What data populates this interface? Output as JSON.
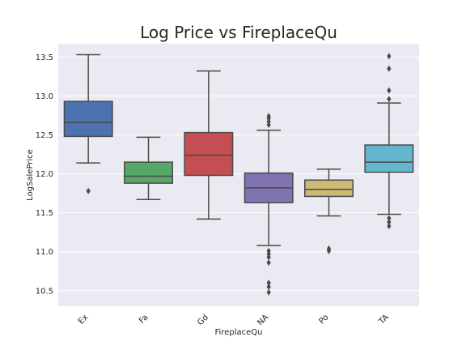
{
  "chart_data": {
    "type": "box",
    "title": "Log Price vs FireplaceQu",
    "xlabel": "FireplaceQu",
    "ylabel": "LogSalePrice",
    "ylim": [
      10.3,
      13.67
    ],
    "yticks": [
      "10.5",
      "11.0",
      "11.5",
      "12.0",
      "12.5",
      "13.0",
      "13.5"
    ],
    "categories": [
      "Ex",
      "Fa",
      "Gd",
      "NA",
      "Po",
      "TA"
    ],
    "boxes": [
      {
        "category": "Ex",
        "color": "#4c72b0",
        "q1": 12.48,
        "median": 12.66,
        "q3": 12.93,
        "whisker_low": 12.14,
        "whisker_high": 13.53,
        "outliers": [
          11.78
        ]
      },
      {
        "category": "Fa",
        "color": "#55a868",
        "q1": 11.88,
        "median": 11.97,
        "q3": 12.15,
        "whisker_low": 11.67,
        "whisker_high": 12.47,
        "outliers": []
      },
      {
        "category": "Gd",
        "color": "#c44e52",
        "q1": 11.98,
        "median": 12.24,
        "q3": 12.53,
        "whisker_low": 11.42,
        "whisker_high": 13.32,
        "outliers": []
      },
      {
        "category": "NA",
        "color": "#8172b2",
        "q1": 11.63,
        "median": 11.82,
        "q3": 12.01,
        "whisker_low": 11.08,
        "whisker_high": 12.56,
        "outliers": [
          12.63,
          12.67,
          12.71,
          12.74,
          11.01,
          10.97,
          10.93,
          10.86,
          10.6,
          10.55,
          10.48
        ]
      },
      {
        "category": "Po",
        "color": "#ccb974",
        "q1": 11.71,
        "median": 11.8,
        "q3": 11.92,
        "whisker_low": 11.46,
        "whisker_high": 12.06,
        "outliers": [
          11.04,
          11.01
        ]
      },
      {
        "category": "TA",
        "color": "#64b5cd",
        "q1": 12.02,
        "median": 12.15,
        "q3": 12.37,
        "whisker_low": 11.48,
        "whisker_high": 12.91,
        "outliers": [
          12.96,
          13.07,
          13.35,
          13.51,
          11.43,
          11.38,
          11.33
        ]
      }
    ],
    "grid": true,
    "background": "#eaeaf2",
    "line_color": "#4a4a4a"
  }
}
